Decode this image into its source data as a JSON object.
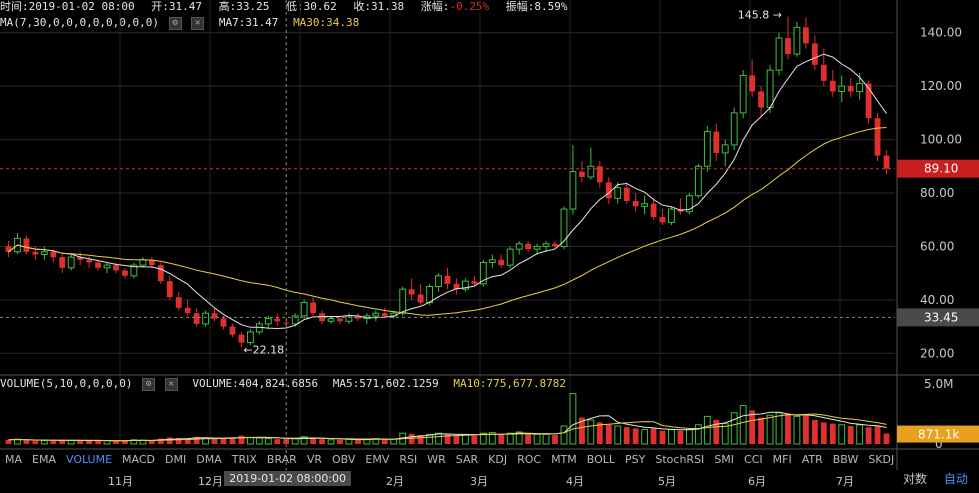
{
  "info_bar": {
    "time": "时间:2019-01-02 08:00",
    "open": "开:31.47",
    "high": "高:33.25",
    "low": "低:30.62",
    "close": "收:31.38",
    "change_label": "涨幅:",
    "change_value": "-0.25%",
    "amplitude": "振幅:8.59%"
  },
  "ma_legend": {
    "label": "MA(7,30,0,0,0,0,0,0,0,0)",
    "ma7": "MA7:31.47",
    "ma30": "MA30:34.38"
  },
  "vol_legend": {
    "label": "VOLUME(5,10,0,0,0,0)",
    "volume": "VOLUME:404,824.6856",
    "ma5": "MA5:571,602.1259",
    "ma10": "MA10:775,677.8782"
  },
  "y_axis": {
    "ticks": [
      "140.00",
      "120.00",
      "100.00",
      "80.00",
      "60.00",
      "40.00",
      "20.00"
    ],
    "current_price": "89.10",
    "cursor_price": "33.45",
    "vol_top": "5.0M",
    "vol_current": "871.1k",
    "vol_zero": "0"
  },
  "annotations": {
    "high": "145.8 →",
    "low": "←22.18"
  },
  "indicator_tabs": [
    "MA",
    "EMA",
    "VOLUME",
    "MACD",
    "DMI",
    "DMA",
    "TRIX",
    "BRAR",
    "VR",
    "OBV",
    "EMV",
    "RSI",
    "WR",
    "SAR",
    "KDJ",
    "ROC",
    "MTM",
    "BOLL",
    "PSY",
    "StochRSI",
    "SMI",
    "CCI",
    "MFI",
    "ATR",
    "BBW",
    "SKDJ"
  ],
  "active_tab": "VOLUME",
  "time_axis": {
    "labels": [
      "11月",
      "12月",
      "2月",
      "3月",
      "4月",
      "5月",
      "6月",
      "7月"
    ],
    "cursor_time": "2019-01-02 08:00:00"
  },
  "bottom_buttons": {
    "log": "对数",
    "auto": "自动"
  },
  "colors": {
    "up": "#3fbf3f",
    "down": "#e0302c",
    "ma7": "#e6e6e6",
    "ma30": "#e8d040",
    "price_tag_bg": "#c81e1e",
    "cursor_tag_bg": "#4a4a4a",
    "vol_tag_bg": "#e8a020"
  },
  "chart_data": {
    "type": "candlestick",
    "ylim": [
      13,
      150
    ],
    "candles": [
      [
        60,
        62,
        56,
        58
      ],
      [
        58,
        65,
        57,
        63
      ],
      [
        63,
        64,
        57,
        58
      ],
      [
        58,
        60,
        55,
        57
      ],
      [
        57,
        60,
        55,
        58
      ],
      [
        58,
        59,
        54,
        56
      ],
      [
        56,
        57,
        50,
        52
      ],
      [
        52,
        57,
        51,
        56
      ],
      [
        56,
        58,
        53,
        55
      ],
      [
        55,
        56,
        52,
        54
      ],
      [
        54,
        55,
        51,
        52
      ],
      [
        52,
        54,
        50,
        53
      ],
      [
        53,
        54,
        50,
        51
      ],
      [
        51,
        52,
        48,
        49
      ],
      [
        49,
        54,
        48,
        53
      ],
      [
        53,
        56,
        52,
        55
      ],
      [
        55,
        56,
        52,
        53
      ],
      [
        53,
        54,
        46,
        47
      ],
      [
        47,
        49,
        40,
        41
      ],
      [
        41,
        43,
        36,
        37
      ],
      [
        37,
        40,
        34,
        35
      ],
      [
        35,
        37,
        30,
        31
      ],
      [
        31,
        36,
        30,
        35
      ],
      [
        35,
        37,
        32,
        33
      ],
      [
        33,
        34,
        29,
        30
      ],
      [
        30,
        31,
        26,
        27
      ],
      [
        27,
        28,
        22.18,
        24
      ],
      [
        24,
        29,
        23,
        28
      ],
      [
        28,
        32,
        27,
        31
      ],
      [
        31,
        34,
        29,
        33
      ],
      [
        33,
        35,
        30,
        32
      ],
      [
        31.47,
        33.25,
        30.62,
        31.38
      ],
      [
        31,
        35,
        30,
        34
      ],
      [
        34,
        40,
        33,
        39
      ],
      [
        39,
        41,
        34,
        35
      ],
      [
        35,
        36,
        31,
        32
      ],
      [
        32,
        34,
        31,
        33
      ],
      [
        33,
        34,
        31,
        32
      ],
      [
        32,
        35,
        31,
        34
      ],
      [
        34,
        35,
        32,
        33
      ],
      [
        33,
        35,
        31,
        34
      ],
      [
        34,
        36,
        32,
        35
      ],
      [
        35,
        37,
        33,
        34
      ],
      [
        34,
        36,
        33,
        35
      ],
      [
        35,
        45,
        34,
        44
      ],
      [
        44,
        48,
        40,
        42
      ],
      [
        42,
        46,
        38,
        39
      ],
      [
        39,
        46,
        38,
        45
      ],
      [
        45,
        50,
        43,
        49
      ],
      [
        49,
        52,
        44,
        46
      ],
      [
        46,
        48,
        42,
        44
      ],
      [
        44,
        48,
        43,
        47
      ],
      [
        47,
        49,
        45,
        46
      ],
      [
        46,
        55,
        45,
        54
      ],
      [
        54,
        57,
        52,
        55
      ],
      [
        55,
        57,
        52,
        53
      ],
      [
        53,
        60,
        52,
        59
      ],
      [
        59,
        62,
        57,
        61
      ],
      [
        61,
        62,
        58,
        59
      ],
      [
        59,
        61,
        57,
        60
      ],
      [
        60,
        62,
        58,
        61
      ],
      [
        61,
        62,
        59,
        60
      ],
      [
        60,
        75,
        59,
        74
      ],
      [
        74,
        98,
        72,
        88
      ],
      [
        88,
        92,
        84,
        86
      ],
      [
        86,
        97,
        85,
        90
      ],
      [
        90,
        92,
        82,
        84
      ],
      [
        84,
        86,
        76,
        78
      ],
      [
        78,
        84,
        76,
        82
      ],
      [
        82,
        84,
        76,
        77
      ],
      [
        77,
        80,
        73,
        75
      ],
      [
        75,
        79,
        72,
        76
      ],
      [
        76,
        78,
        70,
        71
      ],
      [
        71,
        74,
        68,
        69
      ],
      [
        69,
        75,
        68,
        74
      ],
      [
        74,
        78,
        72,
        73
      ],
      [
        73,
        80,
        72,
        79
      ],
      [
        79,
        91,
        78,
        90
      ],
      [
        90,
        105,
        88,
        103
      ],
      [
        103,
        106,
        92,
        95
      ],
      [
        95,
        100,
        90,
        98
      ],
      [
        98,
        112,
        96,
        110
      ],
      [
        110,
        126,
        108,
        124
      ],
      [
        124,
        130,
        116,
        118
      ],
      [
        118,
        120,
        108,
        112
      ],
      [
        112,
        128,
        110,
        126
      ],
      [
        126,
        140,
        124,
        138
      ],
      [
        138,
        146,
        130,
        132
      ],
      [
        132,
        144,
        131,
        142
      ],
      [
        142,
        145.8,
        134,
        136
      ],
      [
        136,
        139,
        126,
        128
      ],
      [
        128,
        134,
        120,
        122
      ],
      [
        122,
        126,
        116,
        118
      ],
      [
        118,
        124,
        114,
        120
      ],
      [
        120,
        123,
        116,
        118
      ],
      [
        118,
        125,
        115,
        121
      ],
      [
        121,
        122,
        106,
        108
      ],
      [
        108,
        110,
        92,
        94
      ],
      [
        94,
        96,
        87,
        89.1
      ]
    ],
    "volumes": [
      0.35,
      0.4,
      0.3,
      0.28,
      0.3,
      0.25,
      0.35,
      0.3,
      0.28,
      0.25,
      0.3,
      0.28,
      0.25,
      0.3,
      0.35,
      0.32,
      0.28,
      0.45,
      0.55,
      0.5,
      0.45,
      0.6,
      0.5,
      0.4,
      0.5,
      0.55,
      0.7,
      0.55,
      0.5,
      0.45,
      0.4,
      0.4,
      0.45,
      0.6,
      0.5,
      0.4,
      0.35,
      0.35,
      0.4,
      0.35,
      0.4,
      0.45,
      0.4,
      0.4,
      0.9,
      0.85,
      0.75,
      0.8,
      0.9,
      0.85,
      0.7,
      0.75,
      0.7,
      0.9,
      0.95,
      0.8,
      0.9,
      1.0,
      0.85,
      0.8,
      0.8,
      0.75,
      1.5,
      4.2,
      2.2,
      2.0,
      1.8,
      1.6,
      1.5,
      1.4,
      1.3,
      1.2,
      1.3,
      1.1,
      1.2,
      1.1,
      1.2,
      1.6,
      2.3,
      2.0,
      1.7,
      2.6,
      3.2,
      2.8,
      2.2,
      2.4,
      2.6,
      2.5,
      2.3,
      2.4,
      2.0,
      1.8,
      1.7,
      1.6,
      1.5,
      1.6,
      1.4,
      1.5,
      0.87
    ],
    "vol_ylim": [
      0,
      5.0
    ]
  }
}
